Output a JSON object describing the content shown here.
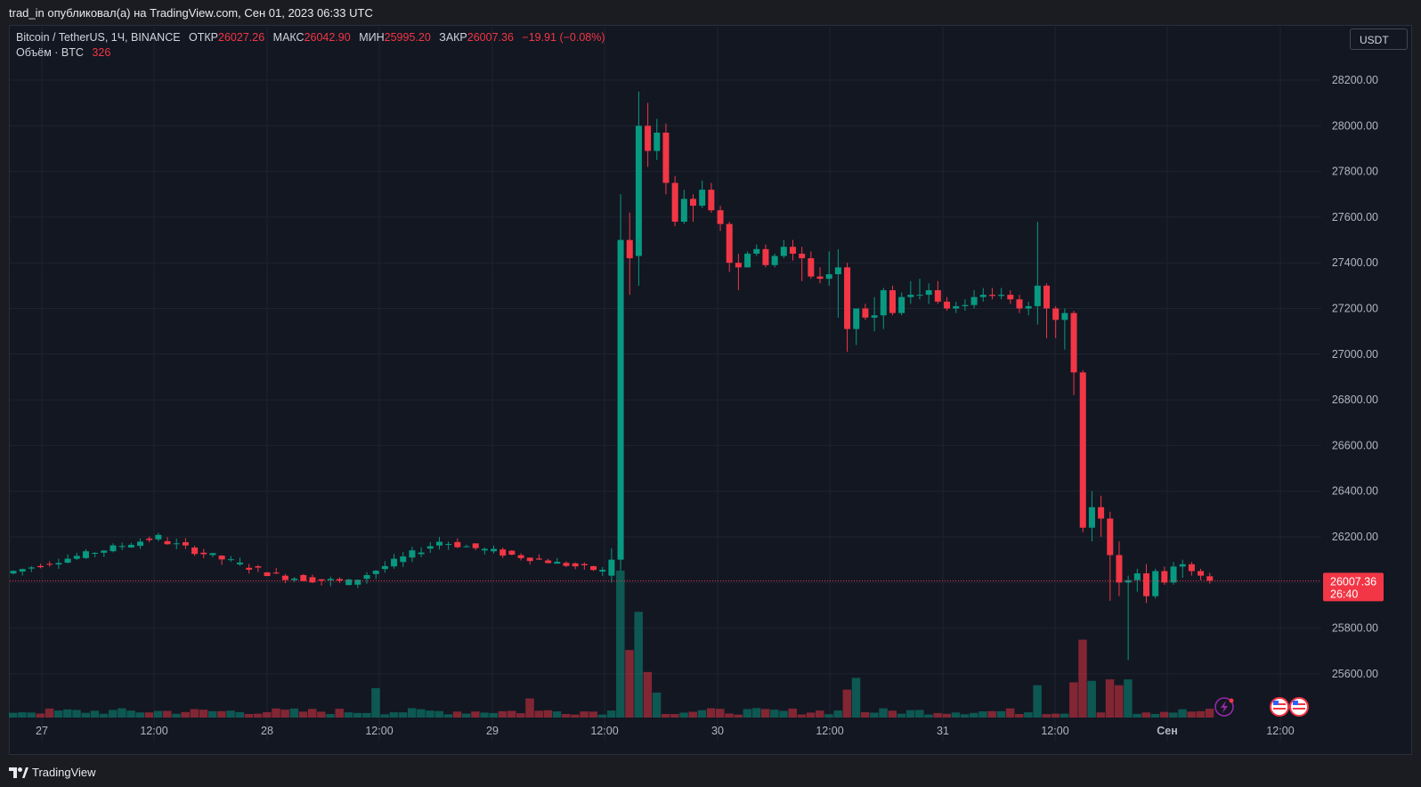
{
  "header": {
    "publish_line": "trad_in опубликовал(а) на TradingView.com, Сен 01, 2023 06:33 UTC"
  },
  "legend": {
    "symbol": "Bitcoin / TetherUS, 1Ч, BINANCE",
    "open_label": "ОТКР",
    "open_value": "26027.26",
    "high_label": "МАКС",
    "high_value": "26042.90",
    "low_label": "МИН",
    "low_value": "25995.20",
    "close_label": "ЗАКР",
    "close_value": "26007.36",
    "change": "−19.91 (−0.08%)",
    "volume_label": "Объём · BTC",
    "volume_value": "326"
  },
  "currency_button": "USDT",
  "price_tag": {
    "price": "26007.36",
    "countdown": "26:40"
  },
  "brand": "TradingView",
  "colors": {
    "up": "#089981",
    "down": "#f23645",
    "background": "#131722",
    "grid": "#1f2330"
  },
  "chart_data": {
    "type": "candlestick",
    "interval": "1h",
    "y_ticks": [
      "25600.00",
      "25800.00",
      "26000.00",
      "26200.00",
      "26400.00",
      "26600.00",
      "26800.00",
      "27000.00",
      "27200.00",
      "27400.00",
      "27600.00",
      "27800.00",
      "28000.00",
      "28200.00"
    ],
    "x_ticks": [
      "27",
      "12:00",
      "28",
      "12:00",
      "29",
      "12:00",
      "30",
      "12:00",
      "31",
      "12:00",
      "Сен",
      "12:00"
    ],
    "ylim": [
      25400,
      28310
    ],
    "current_price": 26007.36,
    "segments": [
      {
        "from": [
          0,
          26040
        ],
        "to": [
          16,
          26200
        ],
        "bars": 17,
        "noise": 25
      },
      {
        "from": [
          16,
          26200
        ],
        "to": [
          30,
          26030
        ],
        "bars": 14,
        "noise": 30
      },
      {
        "from": [
          30,
          26030
        ],
        "to": [
          38,
          26000
        ],
        "bars": 8,
        "noise": 35
      },
      {
        "from": [
          38,
          26000
        ],
        "to": [
          48,
          26180
        ],
        "bars": 10,
        "noise": 30
      },
      {
        "from": [
          48,
          26180
        ],
        "to": [
          56,
          26120
        ],
        "bars": 8,
        "noise": 30
      },
      {
        "from": [
          56,
          26120
        ],
        "to": [
          66,
          26050
        ],
        "bars": 10,
        "noise": 25
      }
    ],
    "key_candles": [
      {
        "i": 66,
        "o": 26030,
        "h": 26150,
        "l": 26000,
        "c": 26100
      },
      {
        "i": 67,
        "o": 26100,
        "h": 27700,
        "l": 26050,
        "c": 27500
      },
      {
        "i": 68,
        "o": 27500,
        "h": 27620,
        "l": 27260,
        "c": 27420
      },
      {
        "i": 69,
        "o": 27430,
        "h": 28150,
        "l": 27300,
        "c": 28000
      },
      {
        "i": 70,
        "o": 28000,
        "h": 28100,
        "l": 27820,
        "c": 27890
      },
      {
        "i": 71,
        "o": 27890,
        "h": 28030,
        "l": 27850,
        "c": 27970
      },
      {
        "i": 72,
        "o": 27970,
        "h": 28010,
        "l": 27700,
        "c": 27750
      },
      {
        "i": 73,
        "o": 27750,
        "h": 27780,
        "l": 27560,
        "c": 27580
      },
      {
        "i": 74,
        "o": 27580,
        "h": 27720,
        "l": 27570,
        "c": 27680
      },
      {
        "i": 75,
        "o": 27680,
        "h": 27700,
        "l": 27580,
        "c": 27650
      },
      {
        "i": 76,
        "o": 27650,
        "h": 27760,
        "l": 27640,
        "c": 27720
      },
      {
        "i": 77,
        "o": 27720,
        "h": 27750,
        "l": 27620,
        "c": 27630
      },
      {
        "i": 78,
        "o": 27630,
        "h": 27650,
        "l": 27540,
        "c": 27570
      },
      {
        "i": 79,
        "o": 27570,
        "h": 27580,
        "l": 27360,
        "c": 27400
      },
      {
        "i": 80,
        "o": 27400,
        "h": 27440,
        "l": 27280,
        "c": 27380
      },
      {
        "i": 81,
        "o": 27380,
        "h": 27450,
        "l": 27380,
        "c": 27440
      },
      {
        "i": 82,
        "o": 27440,
        "h": 27480,
        "l": 27430,
        "c": 27460
      },
      {
        "i": 83,
        "o": 27460,
        "h": 27480,
        "l": 27380,
        "c": 27390
      },
      {
        "i": 84,
        "o": 27390,
        "h": 27440,
        "l": 27380,
        "c": 27430
      },
      {
        "i": 85,
        "o": 27430,
        "h": 27500,
        "l": 27420,
        "c": 27470
      },
      {
        "i": 86,
        "o": 27470,
        "h": 27500,
        "l": 27410,
        "c": 27440
      },
      {
        "i": 87,
        "o": 27440,
        "h": 27470,
        "l": 27320,
        "c": 27420
      },
      {
        "i": 88,
        "o": 27420,
        "h": 27450,
        "l": 27330,
        "c": 27340
      },
      {
        "i": 89,
        "o": 27340,
        "h": 27380,
        "l": 27310,
        "c": 27330
      },
      {
        "i": 90,
        "o": 27330,
        "h": 27450,
        "l": 27300,
        "c": 27350
      },
      {
        "i": 91,
        "o": 27350,
        "h": 27460,
        "l": 27160,
        "c": 27380
      },
      {
        "i": 92,
        "o": 27380,
        "h": 27400,
        "l": 27010,
        "c": 27110
      },
      {
        "i": 93,
        "o": 27110,
        "h": 27200,
        "l": 27040,
        "c": 27200
      },
      {
        "i": 94,
        "o": 27200,
        "h": 27220,
        "l": 27150,
        "c": 27160
      },
      {
        "i": 95,
        "o": 27160,
        "h": 27250,
        "l": 27100,
        "c": 27170
      },
      {
        "i": 96,
        "o": 27170,
        "h": 27290,
        "l": 27110,
        "c": 27280
      },
      {
        "i": 97,
        "o": 27280,
        "h": 27300,
        "l": 27170,
        "c": 27180
      },
      {
        "i": 98,
        "o": 27180,
        "h": 27270,
        "l": 27170,
        "c": 27250
      },
      {
        "i": 99,
        "o": 27250,
        "h": 27320,
        "l": 27220,
        "c": 27260
      },
      {
        "i": 100,
        "o": 27260,
        "h": 27330,
        "l": 27240,
        "c": 27260
      },
      {
        "i": 101,
        "o": 27260,
        "h": 27310,
        "l": 27220,
        "c": 27280
      },
      {
        "i": 102,
        "o": 27280,
        "h": 27320,
        "l": 27220,
        "c": 27230
      },
      {
        "i": 103,
        "o": 27230,
        "h": 27250,
        "l": 27190,
        "c": 27200
      },
      {
        "i": 104,
        "o": 27200,
        "h": 27230,
        "l": 27180,
        "c": 27210
      },
      {
        "i": 105,
        "o": 27210,
        "h": 27240,
        "l": 27190,
        "c": 27215
      },
      {
        "i": 106,
        "o": 27215,
        "h": 27280,
        "l": 27200,
        "c": 27250
      },
      {
        "i": 107,
        "o": 27250,
        "h": 27290,
        "l": 27230,
        "c": 27260
      },
      {
        "i": 108,
        "o": 27260,
        "h": 27290,
        "l": 27240,
        "c": 27255
      },
      {
        "i": 109,
        "o": 27255,
        "h": 27290,
        "l": 27240,
        "c": 27260
      },
      {
        "i": 110,
        "o": 27260,
        "h": 27280,
        "l": 27220,
        "c": 27240
      },
      {
        "i": 111,
        "o": 27240,
        "h": 27260,
        "l": 27180,
        "c": 27200
      },
      {
        "i": 112,
        "o": 27200,
        "h": 27230,
        "l": 27170,
        "c": 27210
      },
      {
        "i": 113,
        "o": 27210,
        "h": 27580,
        "l": 27130,
        "c": 27300
      },
      {
        "i": 114,
        "o": 27300,
        "h": 27310,
        "l": 27070,
        "c": 27200
      },
      {
        "i": 115,
        "o": 27200,
        "h": 27210,
        "l": 27070,
        "c": 27150
      },
      {
        "i": 116,
        "o": 27150,
        "h": 27200,
        "l": 27020,
        "c": 27180
      },
      {
        "i": 117,
        "o": 27180,
        "h": 27190,
        "l": 26820,
        "c": 26920
      },
      {
        "i": 118,
        "o": 26920,
        "h": 26930,
        "l": 26220,
        "c": 26240
      },
      {
        "i": 119,
        "o": 26240,
        "h": 26400,
        "l": 26180,
        "c": 26330
      },
      {
        "i": 120,
        "o": 26330,
        "h": 26380,
        "l": 26200,
        "c": 26280
      },
      {
        "i": 121,
        "o": 26280,
        "h": 26310,
        "l": 25920,
        "c": 26120
      },
      {
        "i": 122,
        "o": 26120,
        "h": 26180,
        "l": 25940,
        "c": 26000
      },
      {
        "i": 123,
        "o": 26000,
        "h": 26030,
        "l": 25660,
        "c": 26010
      },
      {
        "i": 124,
        "o": 26010,
        "h": 26060,
        "l": 25960,
        "c": 26040
      },
      {
        "i": 125,
        "o": 26040,
        "h": 26080,
        "l": 25910,
        "c": 25940
      },
      {
        "i": 126,
        "o": 25940,
        "h": 26060,
        "l": 25930,
        "c": 26050
      },
      {
        "i": 127,
        "o": 26050,
        "h": 26070,
        "l": 25990,
        "c": 26000
      },
      {
        "i": 128,
        "o": 26000,
        "h": 26090,
        "l": 25990,
        "c": 26070
      },
      {
        "i": 129,
        "o": 26070,
        "h": 26100,
        "l": 26020,
        "c": 26080
      },
      {
        "i": 130,
        "o": 26080,
        "h": 26090,
        "l": 26030,
        "c": 26050
      },
      {
        "i": 131,
        "o": 26050,
        "h": 26060,
        "l": 26010,
        "c": 26030
      },
      {
        "i": 132,
        "o": 26027.26,
        "h": 26042.9,
        "l": 25995.2,
        "c": 26007.36
      }
    ],
    "volume_peaks": [
      {
        "i": 67,
        "v": 1000
      },
      {
        "i": 68,
        "v": 460
      },
      {
        "i": 69,
        "v": 720
      },
      {
        "i": 70,
        "v": 310
      },
      {
        "i": 71,
        "v": 170
      },
      {
        "i": 118,
        "v": 530
      },
      {
        "i": 119,
        "v": 250
      },
      {
        "i": 117,
        "v": 240
      },
      {
        "i": 113,
        "v": 220
      },
      {
        "i": 121,
        "v": 260
      },
      {
        "i": 122,
        "v": 220
      },
      {
        "i": 123,
        "v": 260
      },
      {
        "i": 93,
        "v": 270
      },
      {
        "i": 92,
        "v": 190
      },
      {
        "i": 40,
        "v": 200
      },
      {
        "i": 57,
        "v": 130
      }
    ]
  }
}
